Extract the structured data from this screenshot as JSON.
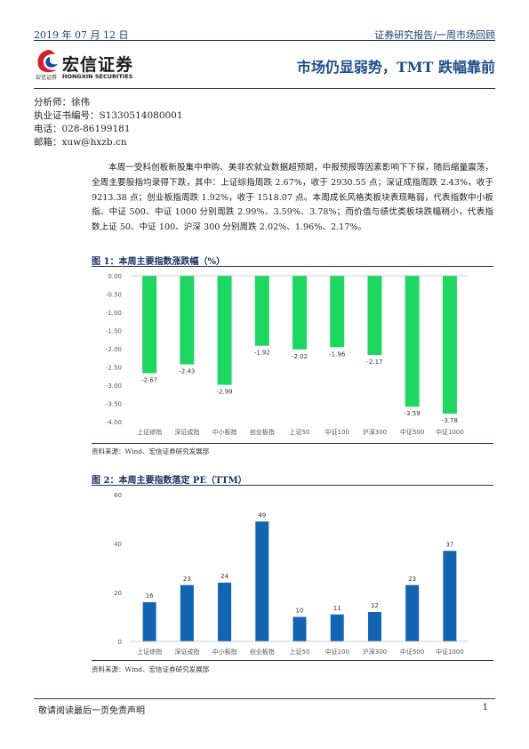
{
  "header": {
    "date": "2019 年 07 月 12 日",
    "report_type": "证券研究报告/一周市场回顾"
  },
  "logo": {
    "name_cn": "宏信证券",
    "name_cn_small": "宏信证券",
    "name_en": "HONGXIN SECURITIES"
  },
  "title": "市场仍显弱势，TMT 跌幅靠前",
  "analyst": {
    "name": "分析师：徐伟",
    "license": "执业证书编号：S1330514080001",
    "phone": "电话：028-86199181",
    "email": "邮箱：xuw@hxzb.cn"
  },
  "summary": "本周一受科创板新股集中申购、美非农就业数据超预期，中报预报等因素影响下下探，随后缩量震荡，全周主要股指均录得下跌，其中：上证综指周跌 2.67%，收于 2930.55 点；深证成指周跌 2.43%，收于 9213.38 点；创业板指周跌 1.92%，收于 1518.07 点。本周成长风格类板块表现略弱，代表指数中小板指、中证 500、中证 1000 分别周跌 2.99%、3.59%、3.78%；而价值与绩优类板块跌幅稍小，代表指数上证 50、中证 100、沪深 300 分别周跌 2.02%、1.96%、2.17%。",
  "figure1": {
    "title": "图 1：本周主要指数涨跌幅（%）",
    "source": "资料来源：Wind、宏信证券研究发展部"
  },
  "figure2": {
    "title": "图 2：本周主要指数落定 PE（TTM）",
    "source": "资料来源：Wind、宏信证券研究发展部"
  },
  "chart_data": [
    {
      "type": "bar",
      "categories": [
        "上证综指",
        "深证成指",
        "中小板指",
        "创业板指",
        "上证50",
        "中证100",
        "沪深300",
        "中证500",
        "中证1000"
      ],
      "values": [
        -2.67,
        -2.43,
        -2.99,
        -1.92,
        -2.02,
        -1.96,
        -2.17,
        -3.59,
        -3.78
      ],
      "value_labels": [
        "-2.67",
        "-2.43",
        "-2.99",
        "-1.92",
        "-2.02",
        "-1.96",
        "-2.17",
        "-3.59",
        "-3.78"
      ],
      "yticks": [
        "0.00",
        "-0.50",
        "-1.00",
        "-1.50",
        "-2.00",
        "-2.50",
        "-3.00",
        "-3.50",
        "-4.00"
      ],
      "ylim": [
        -4.0,
        0.0
      ],
      "color": "#1ed760",
      "grid": false
    },
    {
      "type": "bar",
      "categories": [
        "上证综指",
        "深证成指",
        "中小板指",
        "创业板指",
        "上证50",
        "中证100",
        "沪深300",
        "中证500",
        "中证1000"
      ],
      "values": [
        16,
        23,
        24,
        49,
        10,
        11,
        12,
        23,
        37
      ],
      "value_labels": [
        "16",
        "23",
        "24",
        "49",
        "10",
        "11",
        "12",
        "23",
        "37"
      ],
      "yticks": [
        "0",
        "20",
        "40",
        "60"
      ],
      "ylim": [
        0,
        60
      ],
      "color": "#1464b4",
      "grid": false
    }
  ],
  "footer": {
    "disclaimer": "敬请阅读最后一页免责声明",
    "page": "1"
  }
}
